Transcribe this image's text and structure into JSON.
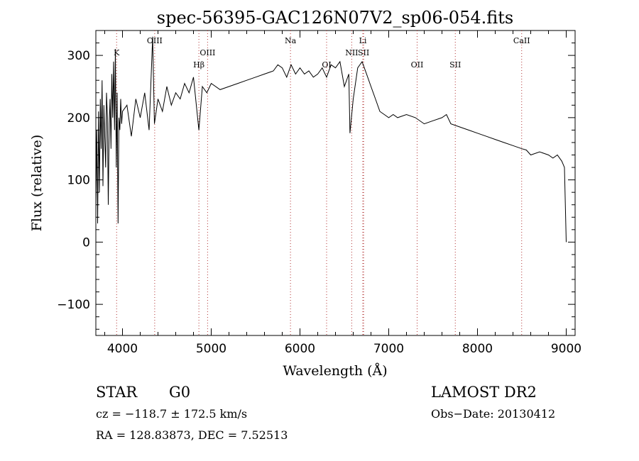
{
  "chart_data": {
    "type": "line",
    "title": "spec-56395-GAC126N07V2_sp06-054.fits",
    "xlabel": "Wavelength (Å)",
    "ylabel": "Flux (relative)",
    "xlim": [
      3700,
      9100
    ],
    "ylim": [
      -150,
      340
    ],
    "x_ticks": [
      4000,
      5000,
      6000,
      7000,
      8000,
      9000
    ],
    "y_ticks": [
      -100,
      0,
      100,
      200,
      300
    ],
    "x_tick_labels": [
      "4000",
      "5000",
      "6000",
      "7000",
      "8000",
      "9000"
    ],
    "y_tick_labels": [
      "−100",
      "0",
      "100",
      "200",
      "300"
    ],
    "grid": false,
    "series": [
      {
        "x": [
          3700,
          3710,
          3720,
          3730,
          3740,
          3750,
          3760,
          3770,
          3780,
          3790,
          3800,
          3810,
          3820,
          3830,
          3840,
          3850,
          3860,
          3870,
          3880,
          3890,
          3900,
          3910,
          3920,
          3930,
          3940,
          3950,
          3960,
          3970,
          3980,
          3990,
          4000,
          4050,
          4100,
          4150,
          4200,
          4250,
          4300,
          4340,
          4360,
          4400,
          4450,
          4500,
          4550,
          4600,
          4650,
          4700,
          4750,
          4800,
          4861,
          4900,
          4950,
          5000,
          5100,
          5200,
          5300,
          5400,
          5500,
          5600,
          5700,
          5750,
          5800,
          5850,
          5900,
          5950,
          6000,
          6050,
          6100,
          6150,
          6200,
          6250,
          6300,
          6350,
          6400,
          6450,
          6500,
          6550,
          6563,
          6600,
          6650,
          6700,
          6750,
          6800,
          6850,
          6900,
          6950,
          7000,
          7050,
          7100,
          7200,
          7300,
          7400,
          7500,
          7600,
          7650,
          7700,
          7800,
          7900,
          8000,
          8100,
          8200,
          8300,
          8400,
          8500,
          8550,
          8600,
          8700,
          8800,
          8850,
          8900,
          8950,
          8980,
          9000
        ],
        "y": [
          60,
          180,
          30,
          210,
          80,
          230,
          150,
          260,
          90,
          220,
          170,
          120,
          240,
          200,
          60,
          190,
          230,
          150,
          270,
          200,
          290,
          180,
          310,
          120,
          240,
          30,
          200,
          180,
          230,
          190,
          210,
          220,
          170,
          230,
          200,
          240,
          180,
          330,
          190,
          230,
          210,
          250,
          220,
          240,
          230,
          255,
          240,
          265,
          180,
          250,
          240,
          255,
          245,
          250,
          255,
          260,
          265,
          270,
          275,
          285,
          280,
          265,
          285,
          270,
          280,
          270,
          275,
          265,
          270,
          280,
          265,
          285,
          280,
          290,
          250,
          270,
          175,
          230,
          280,
          290,
          270,
          250,
          230,
          210,
          205,
          200,
          205,
          200,
          205,
          200,
          190,
          195,
          200,
          205,
          190,
          185,
          180,
          175,
          170,
          165,
          160,
          155,
          150,
          148,
          140,
          145,
          140,
          135,
          140,
          130,
          120,
          0
        ]
      }
    ],
    "line_marks": [
      {
        "label": "K",
        "wavelength": 3934,
        "row": 1
      },
      {
        "label": "OIII",
        "wavelength": 4363,
        "row": 0
      },
      {
        "label": "Hβ",
        "wavelength": 4861,
        "row": 2
      },
      {
        "label": "OIII",
        "wavelength": 4959,
        "row": 1
      },
      {
        "label": "Na",
        "wavelength": 5893,
        "row": 0
      },
      {
        "label": "OI",
        "wavelength": 6300,
        "row": 2
      },
      {
        "label": "Li",
        "wavelength": 6708,
        "row": 0
      },
      {
        "label": "NII",
        "wavelength": 6583,
        "row": 1
      },
      {
        "label": "SII",
        "wavelength": 6717,
        "row": 1
      },
      {
        "label": "OII",
        "wavelength": 7320,
        "row": 2
      },
      {
        "label": "SII",
        "wavelength": 7750,
        "row": 2
      },
      {
        "label": "CaII",
        "wavelength": 8498,
        "row": 0
      }
    ]
  },
  "info": {
    "class": "STAR",
    "subclass": "G0",
    "cz": "cz = −118.7 ± 172.5 km/s",
    "coords": "RA = 128.83873, DEC =   7.52513",
    "survey": "LAMOST DR2",
    "obs_date": "Obs−Date: 20130412"
  }
}
